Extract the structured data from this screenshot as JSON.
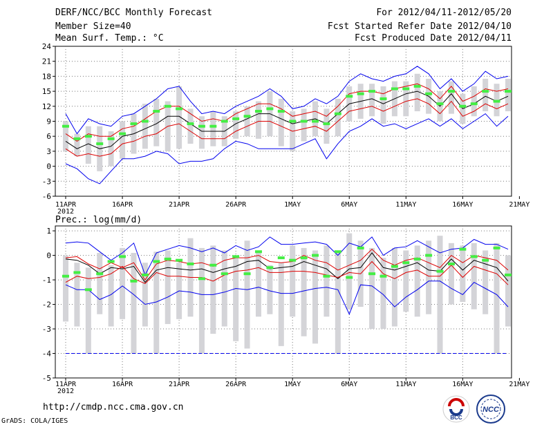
{
  "header": {
    "title": "DERF/NCC/BCC Monthly Forecast",
    "member_size": "Member Size=40",
    "variable1": "Mean Surf. Temp.: °C",
    "period": "For 2012/04/11-2012/05/20",
    "fcst_started": "Fcst Started Refer Date 2012/04/10",
    "fcst_produced": "Fcst Produced Date 2012/04/11"
  },
  "footer": {
    "url": "http://cmdp.ncc.cma.gov.cn",
    "grads": "GrADS: COLA/IGES",
    "logo_bcc": "BCC",
    "logo_ncc": "NCC"
  },
  "colors": {
    "envelope": "#0000ee",
    "spread": "#dd0000",
    "mean": "#000000",
    "obs": "#44ee44",
    "box": "#d4d4d8",
    "grid": "#777777"
  },
  "chart_data": [
    {
      "type": "line",
      "title": "Mean Surf. Temp.: °C",
      "ylabel": "°C",
      "x_ticks": [
        "11APR",
        "16APR",
        "21APR",
        "26APR",
        "1MAY",
        "6MAY",
        "11MAY",
        "16MAY",
        "21MAY"
      ],
      "x_year": "2012",
      "y_ticks": [
        "24",
        "21",
        "18",
        "15",
        "12",
        "9",
        "6",
        "3",
        "0",
        "-3",
        "-6"
      ],
      "ylim": [
        -6,
        24
      ],
      "n_days": 40,
      "series": [
        {
          "name": "max",
          "values": [
            10.5,
            6.5,
            9.5,
            8.5,
            8.0,
            10.0,
            10.5,
            12.0,
            13.5,
            15.5,
            16.0,
            13.0,
            10.5,
            11.0,
            10.5,
            12.0,
            13.0,
            14.0,
            15.5,
            14.0,
            11.5,
            12.0,
            13.5,
            12.5,
            14.0,
            17.0,
            18.5,
            17.5,
            17.0,
            18.0,
            18.5,
            20.0,
            18.5,
            15.5,
            17.5,
            15.0,
            16.5,
            19.0,
            17.5,
            18.0
          ]
        },
        {
          "name": "spread_upper",
          "values": [
            6.5,
            5.0,
            6.5,
            6.0,
            6.0,
            7.5,
            8.0,
            9.5,
            11.0,
            12.0,
            12.0,
            10.5,
            9.0,
            9.5,
            9.0,
            10.5,
            11.5,
            12.5,
            12.5,
            11.5,
            10.0,
            10.5,
            11.0,
            10.0,
            12.0,
            14.5,
            15.0,
            15.0,
            14.5,
            15.5,
            16.0,
            16.5,
            15.5,
            13.5,
            16.0,
            13.0,
            14.0,
            15.5,
            15.0,
            15.5
          ]
        },
        {
          "name": "mean",
          "values": [
            5.0,
            3.5,
            4.5,
            3.5,
            4.0,
            6.0,
            6.5,
            7.5,
            8.5,
            10.0,
            10.0,
            8.5,
            7.0,
            7.0,
            7.0,
            8.5,
            9.5,
            10.5,
            10.5,
            9.5,
            8.5,
            9.0,
            9.5,
            8.5,
            10.5,
            12.5,
            13.0,
            13.5,
            12.5,
            13.5,
            14.5,
            15.0,
            14.0,
            12.0,
            14.5,
            11.5,
            12.5,
            14.0,
            13.0,
            14.0
          ]
        },
        {
          "name": "spread_lower",
          "values": [
            3.5,
            2.0,
            2.5,
            2.0,
            2.5,
            4.5,
            5.0,
            6.0,
            6.5,
            8.0,
            8.5,
            7.0,
            5.5,
            5.5,
            5.5,
            7.0,
            8.0,
            9.0,
            9.0,
            8.0,
            7.0,
            7.5,
            8.0,
            7.0,
            9.0,
            11.0,
            11.5,
            12.0,
            11.0,
            12.0,
            13.0,
            13.5,
            12.5,
            10.5,
            13.0,
            10.0,
            11.0,
            12.5,
            11.5,
            12.5
          ]
        },
        {
          "name": "min",
          "values": [
            0.5,
            -0.5,
            -2.5,
            -3.5,
            -1.0,
            1.5,
            1.5,
            2.0,
            3.0,
            2.5,
            0.5,
            1.0,
            1.0,
            1.5,
            3.5,
            5.0,
            4.5,
            3.5,
            3.5,
            3.5,
            3.5,
            4.5,
            5.5,
            1.5,
            4.5,
            7.0,
            8.0,
            9.5,
            8.0,
            8.5,
            7.5,
            8.5,
            9.5,
            8.0,
            9.5,
            7.5,
            9.0,
            10.5,
            8.0,
            10.0
          ]
        }
      ],
      "box_high": [
        9.0,
        6.5,
        8.0,
        8.0,
        7.0,
        9.0,
        10.5,
        12.5,
        13.5,
        13.0,
        16.0,
        11.5,
        10.0,
        11.0,
        10.0,
        11.0,
        12.0,
        13.0,
        15.0,
        13.5,
        11.0,
        11.5,
        13.0,
        11.5,
        13.5,
        16.0,
        16.5,
        16.5,
        16.0,
        17.0,
        17.0,
        18.5,
        17.5,
        15.0,
        17.0,
        14.5,
        16.0,
        17.5,
        16.5,
        17.5
      ],
      "box_low": [
        3.0,
        2.0,
        0.5,
        -1.0,
        0.0,
        1.5,
        2.5,
        3.5,
        4.0,
        3.0,
        3.5,
        4.5,
        3.5,
        4.0,
        4.0,
        5.5,
        6.0,
        5.5,
        6.0,
        4.0,
        3.0,
        5.0,
        6.0,
        4.5,
        6.0,
        9.0,
        9.5,
        10.0,
        8.5,
        10.0,
        10.0,
        11.0,
        10.5,
        9.0,
        10.5,
        8.5,
        10.0,
        11.0,
        10.0,
        11.0
      ],
      "observed": [
        8.0,
        5.5,
        6.0,
        4.5,
        5.5,
        6.5,
        8.5,
        9.0,
        11.0,
        12.0,
        11.5,
        8.5,
        8.0,
        8.0,
        9.0,
        9.5,
        10.0,
        11.0,
        11.5,
        11.0,
        9.0,
        9.0,
        9.0,
        8.5,
        10.5,
        14.0,
        14.5,
        15.0,
        13.5,
        15.5,
        15.5,
        16.0,
        14.5,
        12.5,
        15.0,
        12.0,
        12.5,
        15.0,
        13.0,
        15.0
      ]
    },
    {
      "type": "line",
      "title": "Prec.: log(mm/d)",
      "ylabel": "log(mm/d)",
      "x_ticks": [
        "11APR",
        "16APR",
        "21APR",
        "26APR",
        "1MAY",
        "6MAY",
        "11MAY",
        "16MAY",
        "21MAY"
      ],
      "x_year": "2012",
      "y_ticks": [
        "1",
        "0",
        "-1",
        "-2",
        "-3",
        "-4",
        "-5"
      ],
      "ylim": [
        -5,
        1.2
      ],
      "n_days": 40,
      "series": [
        {
          "name": "max",
          "values": [
            0.5,
            0.55,
            0.5,
            0.15,
            -0.2,
            0.1,
            0.5,
            -0.8,
            0.1,
            0.25,
            0.4,
            0.3,
            0.15,
            0.3,
            0.1,
            0.4,
            0.2,
            0.35,
            0.75,
            0.45,
            0.45,
            0.5,
            0.55,
            0.45,
            0.0,
            0.5,
            0.35,
            0.75,
            0.0,
            0.3,
            0.35,
            0.6,
            0.35,
            0.1,
            0.25,
            0.3,
            0.65,
            0.45,
            0.45,
            0.25
          ]
        },
        {
          "name": "spread_upper",
          "values": [
            -0.1,
            -0.05,
            -0.35,
            -0.55,
            -0.3,
            -0.5,
            -0.3,
            -1.0,
            -0.35,
            -0.2,
            -0.25,
            -0.35,
            -0.3,
            -0.45,
            -0.2,
            -0.1,
            -0.1,
            0.0,
            -0.25,
            -0.3,
            -0.25,
            0.0,
            -0.2,
            -0.3,
            -0.6,
            -0.4,
            -0.2,
            0.25,
            -0.2,
            -0.4,
            -0.2,
            -0.1,
            -0.3,
            -0.5,
            0.0,
            -0.3,
            0.0,
            -0.1,
            -0.2,
            -0.6
          ]
        },
        {
          "name": "mean",
          "values": [
            -0.15,
            -0.2,
            -0.4,
            -0.75,
            -0.5,
            -0.55,
            -0.45,
            -1.1,
            -0.6,
            -0.5,
            -0.55,
            -0.6,
            -0.55,
            -0.7,
            -0.55,
            -0.45,
            -0.25,
            -0.2,
            -0.55,
            -0.5,
            -0.45,
            -0.25,
            -0.4,
            -0.55,
            -0.95,
            -0.55,
            -0.5,
            0.1,
            -0.5,
            -0.6,
            -0.45,
            -0.3,
            -0.6,
            -0.65,
            -0.15,
            -0.6,
            -0.2,
            -0.35,
            -0.5,
            -1.05
          ]
        },
        {
          "name": "spread_lower",
          "values": [
            -1.1,
            -0.85,
            -0.95,
            -0.9,
            -0.75,
            -0.45,
            -0.95,
            -1.15,
            -0.7,
            -0.85,
            -0.85,
            -0.9,
            -0.9,
            -1.05,
            -0.8,
            -0.65,
            -0.6,
            -0.5,
            -0.7,
            -0.7,
            -0.65,
            -0.65,
            -0.7,
            -0.8,
            -0.9,
            -0.7,
            -0.75,
            -0.25,
            -0.75,
            -0.95,
            -0.7,
            -0.6,
            -0.85,
            -0.85,
            -0.4,
            -0.9,
            -0.45,
            -0.6,
            -0.75,
            -1.2
          ]
        },
        {
          "name": "min",
          "values": [
            -1.2,
            -1.4,
            -1.4,
            -1.8,
            -1.6,
            -1.25,
            -1.6,
            -2.0,
            -1.9,
            -1.7,
            -1.45,
            -1.5,
            -1.6,
            -1.6,
            -1.5,
            -1.35,
            -1.4,
            -1.3,
            -1.45,
            -1.55,
            -1.55,
            -1.45,
            -1.35,
            -1.3,
            -1.4,
            -2.4,
            -1.2,
            -1.25,
            -1.6,
            -2.1,
            -1.7,
            -1.4,
            -1.05,
            -1.05,
            -1.35,
            -1.6,
            -1.1,
            -1.35,
            -1.6,
            -2.1
          ]
        },
        {
          "name": "min_floor",
          "values": [
            -4,
            -4,
            -4,
            -4,
            -4,
            -4,
            -4,
            -4,
            -4,
            -4,
            -4,
            -4,
            -4,
            -4,
            -4,
            -4,
            -4,
            -4,
            -4,
            -4,
            -4,
            -4,
            -4,
            -4,
            -4,
            -4,
            -4,
            -4,
            -4,
            -4,
            -4,
            -4,
            -4,
            -4,
            -4,
            -4,
            -4,
            -4,
            -4,
            -4
          ]
        }
      ],
      "box_high": [
        0.0,
        -0.3,
        -0.5,
        0.1,
        -0.4,
        0.3,
        0.1,
        -0.3,
        0.15,
        0.2,
        -0.3,
        0.7,
        0.3,
        0.4,
        0.2,
        -0.1,
        0.6,
        0.2,
        -0.4,
        -0.3,
        0.4,
        0.3,
        0.2,
        0.4,
        0.2,
        0.9,
        0.6,
        0.3,
        -0.1,
        0.3,
        0.2,
        0.4,
        0.6,
        0.8,
        0.5,
        0.4,
        0.5,
        0.2,
        0.5,
        0.0
      ],
      "box_low": [
        -2.7,
        -2.9,
        -4.0,
        -2.4,
        -2.9,
        -2.6,
        -4.0,
        -2.9,
        -4.0,
        -2.8,
        -2.6,
        -2.5,
        -4.0,
        -3.2,
        -2.9,
        -3.5,
        -3.8,
        -2.5,
        -2.4,
        -3.7,
        -2.5,
        -3.3,
        -3.6,
        -2.5,
        -4.0,
        -2.2,
        -2.1,
        -3.0,
        -3.0,
        -2.9,
        -2.3,
        -2.5,
        -2.4,
        -4.0,
        -2.0,
        -1.9,
        -2.2,
        -2.4,
        -4.0,
        -2.9
      ],
      "observed": [
        -0.85,
        -0.7,
        -1.4,
        -0.75,
        -0.25,
        -0.05,
        -1.05,
        -0.8,
        -0.25,
        -0.15,
        -0.2,
        -0.35,
        -0.95,
        -0.4,
        -0.75,
        -0.05,
        -0.75,
        0.15,
        -0.5,
        -0.1,
        -0.2,
        -0.1,
        0.0,
        -0.85,
        0.15,
        -0.9,
        0.3,
        -0.75,
        -0.85,
        -0.45,
        -0.3,
        -0.15,
        -0.0,
        -0.65,
        -0.35,
        0.25,
        -0.05,
        -0.2,
        0.3,
        -0.8
      ]
    }
  ]
}
